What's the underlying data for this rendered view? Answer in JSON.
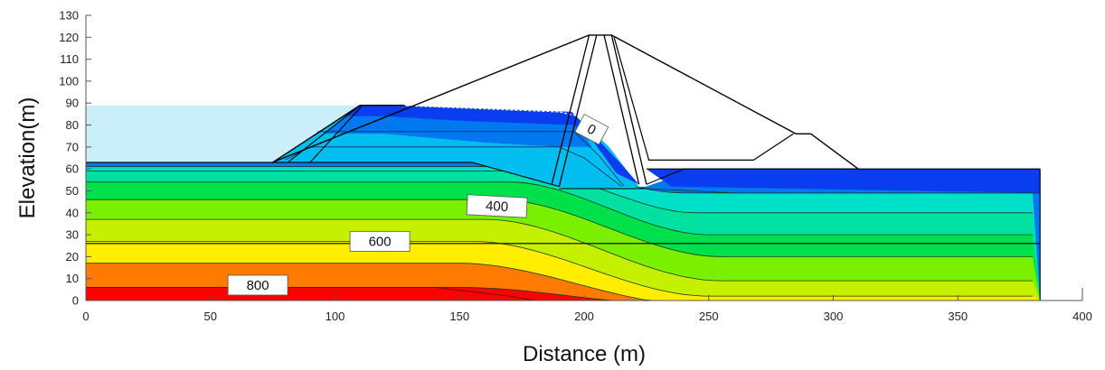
{
  "chart_data": {
    "type": "contour",
    "xlabel": "Distance (m)",
    "ylabel": "Elevation(m)",
    "xlim": [
      0,
      400
    ],
    "ylim": [
      0,
      130
    ],
    "x_ticks": [
      0,
      50,
      100,
      150,
      200,
      250,
      300,
      350,
      400
    ],
    "y_ticks": [
      0,
      10,
      20,
      30,
      40,
      50,
      60,
      70,
      80,
      90,
      100,
      110,
      120,
      130
    ],
    "contour_labels": [
      {
        "text": "0",
        "x": 203,
        "y": 78,
        "rotate": 28
      },
      {
        "text": "400",
        "x": 165,
        "y": 43,
        "rotate": 3
      },
      {
        "text": "600",
        "x": 118,
        "y": 27,
        "rotate": 0
      },
      {
        "text": "800",
        "x": 69,
        "y": 7,
        "rotate": 0
      }
    ],
    "band_colors": [
      "#ff0000",
      "#ff7a00",
      "#ffee00",
      "#c5f000",
      "#7af000",
      "#00e04a",
      "#00e0a0",
      "#00e0c8",
      "#00bff0",
      "#0078f0",
      "#0a3cf0"
    ],
    "reservoir_level": 89,
    "dam": {
      "crest_elevation": 121,
      "upstream_toe": [
        75,
        63
      ],
      "downstream_toe": [
        310,
        60
      ],
      "crest_x": [
        202,
        211
      ]
    },
    "foundation": {
      "x_extent": [
        0,
        383
      ],
      "top_left_elevation": 63,
      "top_right_elevation": 60,
      "layer_boundary_elevation": 26
    }
  }
}
